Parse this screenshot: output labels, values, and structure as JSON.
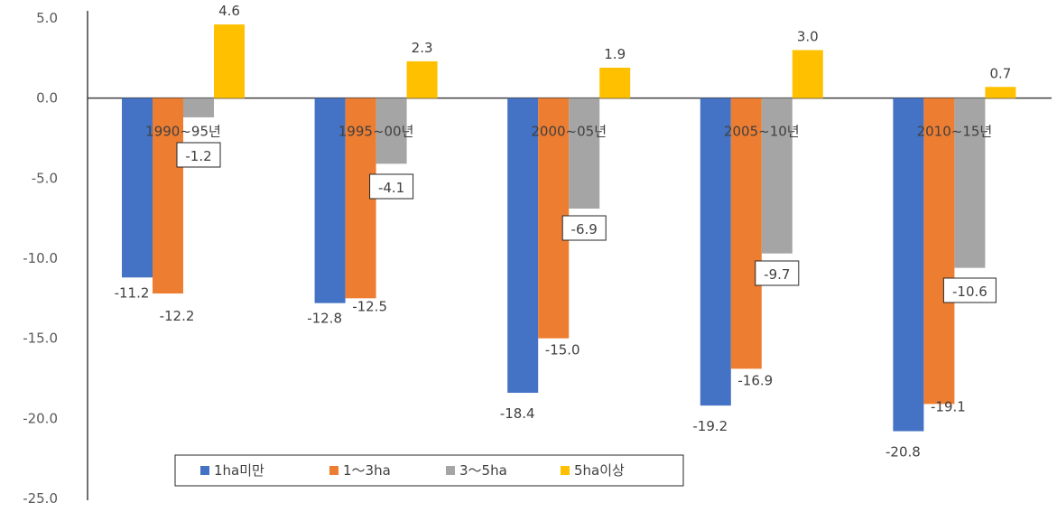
{
  "chart_data": {
    "type": "bar",
    "categories": [
      "1990~95년",
      "1995~00년",
      "2000~05년",
      "2005~10년",
      "2010~15년"
    ],
    "series": [
      {
        "name": "1ha미만",
        "color": "#4472C4",
        "values": [
          -11.2,
          -12.8,
          -18.4,
          -19.2,
          -20.8
        ]
      },
      {
        "name": "1～3ha",
        "color": "#ED7D31",
        "values": [
          -12.2,
          -12.5,
          -15.0,
          -16.9,
          -19.1
        ]
      },
      {
        "name": "3～5ha",
        "color": "#A5A5A5",
        "values": [
          -1.2,
          -4.1,
          -6.9,
          -9.7,
          -10.6
        ]
      },
      {
        "name": "5ha이상",
        "color": "#FFC000",
        "values": [
          4.6,
          2.3,
          1.9,
          3.0,
          0.7
        ]
      }
    ],
    "value_labels": [
      [
        "-11.2",
        "-12.8",
        "-18.4",
        "-19.2",
        "-20.8"
      ],
      [
        "-12.2",
        "-12.5",
        "-15.0",
        "-16.9",
        "-19.1"
      ],
      [
        "-1.2",
        "-4.1",
        "-6.9",
        "-9.7",
        "-10.6"
      ],
      [
        "4.6",
        "2.3",
        "1.9",
        "3.0",
        "0.7"
      ]
    ],
    "y_ticks": [
      "5.0",
      "0.0",
      "-5.0",
      "-10.0",
      "-15.0",
      "-20.0",
      "-25.0"
    ],
    "y_tick_values": [
      5,
      0,
      -5,
      -10,
      -15,
      -20,
      -25
    ],
    "ylim": [
      -25,
      5
    ],
    "title": "",
    "xlabel": "",
    "ylabel": "",
    "grid": false,
    "legend_position": "bottom-left"
  }
}
